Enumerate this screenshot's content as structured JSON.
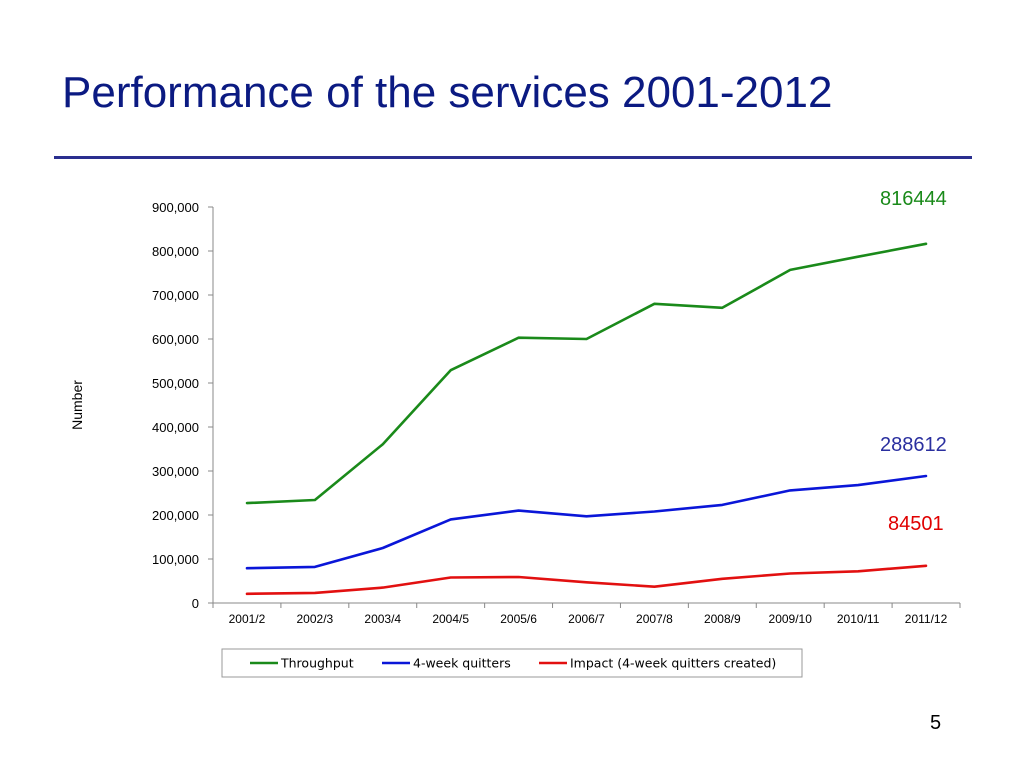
{
  "slide": {
    "title": "Performance of the services 2001-2012",
    "page_number": "5"
  },
  "colors": {
    "title": "#0b1a82",
    "rule": "#2a2f8f"
  },
  "callouts": [
    {
      "text": "816444",
      "color": "#1a8a1a"
    },
    {
      "text": "288612",
      "color": "#2a2f9f"
    },
    {
      "text": "84501",
      "color": "#e00000"
    }
  ],
  "chart_data": {
    "type": "line",
    "ylabel": "Number",
    "xlabel": "",
    "ylim": [
      0,
      900000
    ],
    "yticks": [
      0,
      100000,
      200000,
      300000,
      400000,
      500000,
      600000,
      700000,
      800000,
      900000
    ],
    "ytick_labels": [
      "0",
      "100,000",
      "200,000",
      "300,000",
      "400,000",
      "500,000",
      "600,000",
      "700,000",
      "800,000",
      "900,000"
    ],
    "categories": [
      "2001/2",
      "2002/3",
      "2003/4",
      "2004/5",
      "2005/6",
      "2006/7",
      "2007/8",
      "2008/9",
      "2009/10",
      "2010/11",
      "2011/12"
    ],
    "series": [
      {
        "name": "Throughput",
        "color": "#1a8a1a",
        "values": [
          227000,
          234000,
          361000,
          529000,
          603000,
          600000,
          680000,
          671000,
          757000,
          787000,
          816444
        ]
      },
      {
        "name": "4-week quitters",
        "color": "#0a16d8",
        "values": [
          79000,
          82000,
          125000,
          190000,
          210000,
          197000,
          208000,
          223000,
          256000,
          268000,
          288612
        ]
      },
      {
        "name": "Impact (4-week quitters created)",
        "color": "#e21010",
        "values": [
          21000,
          23000,
          35000,
          58000,
          59000,
          47000,
          37000,
          55000,
          67000,
          72000,
          84501
        ]
      }
    ],
    "legend_position": "bottom",
    "grid": false
  }
}
